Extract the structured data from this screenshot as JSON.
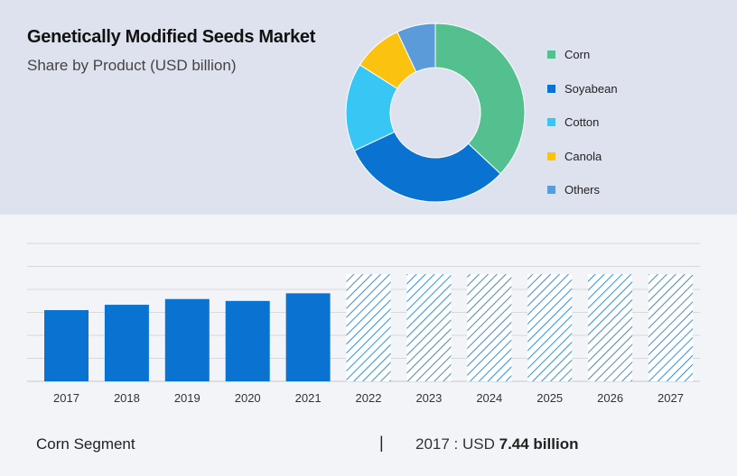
{
  "header": {
    "title": "Genetically Modified Seeds Market",
    "subtitle": "Share by Product (USD billion)"
  },
  "colors": {
    "bar": "#0a72d1",
    "hatch": "#0a72d1",
    "corn": "#55c08f",
    "soyabean": "#0a72d1",
    "cotton": "#38c6f4",
    "canola": "#fbc20f",
    "others": "#5b9bd9"
  },
  "chart_data": [
    {
      "type": "pie",
      "subtype": "donut",
      "legend_position": "right",
      "categories": [
        "Corn",
        "Soyabean",
        "Cotton",
        "Canola",
        "Others"
      ],
      "values": [
        37,
        31,
        16,
        9,
        7
      ],
      "unit": "%"
    },
    {
      "type": "bar",
      "categories": [
        "2017",
        "2018",
        "2019",
        "2020",
        "2021",
        "2022",
        "2023",
        "2024",
        "2025",
        "2026",
        "2027"
      ],
      "values": [
        7.44,
        8.0,
        8.6,
        8.4,
        9.2,
        11.2,
        11.2,
        11.2,
        11.2,
        11.2,
        11.2
      ],
      "forecast_from": "2022",
      "forecast_style": "hatched",
      "ylim": [
        0,
        13
      ],
      "grid": true,
      "y_tick_labels_shown": false
    }
  ],
  "footer": {
    "segment": "Corn Segment",
    "separator": "|",
    "year_prefix": "2017 : USD ",
    "value": "7.44 billion"
  }
}
